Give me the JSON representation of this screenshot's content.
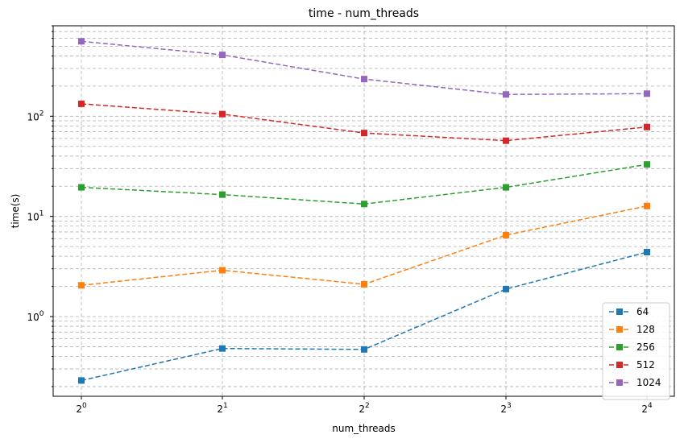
{
  "chart_data": {
    "type": "line",
    "title": "time - num_threads",
    "xlabel": "num_threads",
    "ylabel": "time(s)",
    "x_scale": "log2",
    "y_scale": "log10",
    "x": [
      1,
      2,
      4,
      8,
      16
    ],
    "x_tick_labels": [
      {
        "base": "2",
        "exp": "0"
      },
      {
        "base": "2",
        "exp": "1"
      },
      {
        "base": "2",
        "exp": "2"
      },
      {
        "base": "2",
        "exp": "3"
      },
      {
        "base": "2",
        "exp": "4"
      }
    ],
    "y_tick_labels": [
      {
        "base": "10",
        "exp": "0",
        "value": 1
      },
      {
        "base": "10",
        "exp": "1",
        "value": 10
      },
      {
        "base": "10",
        "exp": "2",
        "value": 100
      }
    ],
    "ylim": [
      0.16,
      800
    ],
    "grid": true,
    "grid_style": "dashed",
    "legend_position": "lower right",
    "series": [
      {
        "name": "64",
        "color": "#1f77b4",
        "values": [
          0.23,
          0.48,
          0.47,
          1.88,
          4.4
        ]
      },
      {
        "name": "128",
        "color": "#ff7f0e",
        "values": [
          2.05,
          2.9,
          2.1,
          6.5,
          12.7
        ]
      },
      {
        "name": "256",
        "color": "#2ca02c",
        "values": [
          19.5,
          16.5,
          13.3,
          19.5,
          33.0
        ]
      },
      {
        "name": "512",
        "color": "#d62728",
        "values": [
          133,
          105,
          68,
          57,
          78
        ]
      },
      {
        "name": "1024",
        "color": "#9467bd",
        "values": [
          560,
          410,
          235,
          165,
          168
        ]
      }
    ]
  }
}
